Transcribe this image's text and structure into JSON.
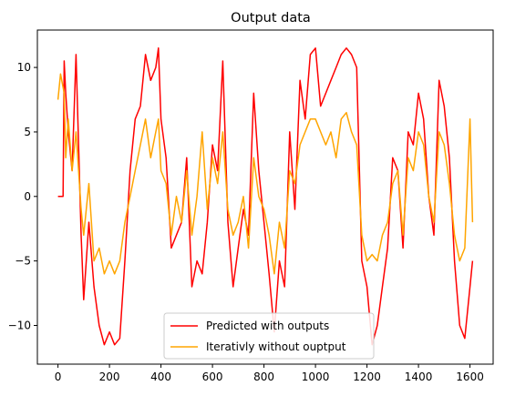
{
  "chart_data": {
    "type": "line",
    "title": "Output data",
    "xlabel": "",
    "ylabel": "",
    "xlim": [
      -80,
      1690
    ],
    "ylim": [
      -13.0,
      12.9
    ],
    "xticks": [
      0,
      200,
      400,
      600,
      800,
      1000,
      1200,
      1400,
      1600
    ],
    "yticks": [
      -10,
      -5,
      0,
      5,
      10
    ],
    "grid": false,
    "legend_position": "lower center",
    "colors": {
      "predicted": "#ff0000",
      "iterative": "#ffa500"
    },
    "series": [
      {
        "name": "Predicted with outputs",
        "color": "#ff0000",
        "x": [
          0,
          20,
          24,
          30,
          40,
          55,
          70,
          90,
          100,
          120,
          140,
          160,
          180,
          200,
          220,
          240,
          260,
          280,
          300,
          320,
          340,
          360,
          380,
          390,
          400,
          420,
          440,
          460,
          480,
          500,
          520,
          540,
          560,
          580,
          600,
          620,
          640,
          660,
          680,
          700,
          720,
          740,
          760,
          780,
          800,
          820,
          840,
          860,
          880,
          900,
          920,
          940,
          960,
          980,
          1000,
          1020,
          1040,
          1060,
          1080,
          1100,
          1120,
          1140,
          1160,
          1180,
          1200,
          1220,
          1240,
          1260,
          1280,
          1300,
          1320,
          1340,
          1360,
          1380,
          1400,
          1420,
          1440,
          1460,
          1480,
          1500,
          1520,
          1540,
          1560,
          1580,
          1600,
          1610
        ],
        "y": [
          0,
          0,
          10.5,
          8,
          5,
          2,
          11,
          -3,
          -8,
          -2,
          -7,
          -10,
          -11.5,
          -10.5,
          -11.5,
          -11,
          -5,
          2,
          6,
          7,
          11,
          9,
          10,
          11.5,
          6,
          3,
          -4,
          -3,
          -2,
          3,
          -7,
          -5,
          -6,
          -2,
          4,
          2,
          10.5,
          -2,
          -7,
          -4,
          -1,
          -3,
          8,
          2,
          -2,
          -6,
          -10.5,
          -5,
          -7,
          5,
          -1,
          9,
          6,
          11,
          11.5,
          7,
          8,
          9,
          10,
          11,
          11.5,
          11,
          10,
          -5,
          -7,
          -11.5,
          -10,
          -7,
          -4,
          3,
          2,
          -4,
          5,
          4,
          8,
          6,
          0,
          -3,
          9,
          7,
          3,
          -5,
          -10,
          -11,
          -7,
          -5
        ]
      },
      {
        "name": "Iterativly without ouptput",
        "color": "#ffa500",
        "x": [
          0,
          10,
          24,
          30,
          40,
          55,
          70,
          90,
          100,
          120,
          140,
          160,
          180,
          200,
          220,
          240,
          260,
          280,
          300,
          320,
          340,
          360,
          380,
          390,
          400,
          420,
          440,
          460,
          480,
          500,
          520,
          540,
          560,
          580,
          600,
          620,
          640,
          660,
          680,
          700,
          720,
          740,
          760,
          780,
          800,
          820,
          840,
          860,
          880,
          900,
          920,
          940,
          960,
          980,
          1000,
          1020,
          1040,
          1060,
          1080,
          1100,
          1120,
          1140,
          1160,
          1180,
          1200,
          1220,
          1240,
          1260,
          1280,
          1300,
          1320,
          1340,
          1360,
          1380,
          1400,
          1420,
          1440,
          1460,
          1480,
          1500,
          1520,
          1540,
          1560,
          1580,
          1600,
          1610
        ],
        "y": [
          7.5,
          9.5,
          8,
          3,
          6,
          2,
          5,
          -1,
          -3,
          1,
          -5,
          -4,
          -6,
          -5,
          -6,
          -5,
          -2,
          0,
          2,
          4,
          6,
          3,
          5,
          6,
          2,
          1,
          -3,
          0,
          -2,
          2,
          -3,
          0,
          5,
          -1,
          3,
          1,
          5,
          -1,
          -3,
          -2,
          0,
          -4,
          3,
          0,
          -1,
          -3,
          -6,
          -2,
          -4,
          2,
          1,
          4,
          5,
          6,
          6,
          5,
          4,
          5,
          3,
          6,
          6.5,
          5,
          4,
          -3,
          -5,
          -4.5,
          -5,
          -3,
          -2,
          1,
          2,
          -3,
          3,
          2,
          5,
          4,
          0,
          -2,
          5,
          4,
          1,
          -3,
          -5,
          -4,
          6,
          -2
        ]
      }
    ]
  }
}
